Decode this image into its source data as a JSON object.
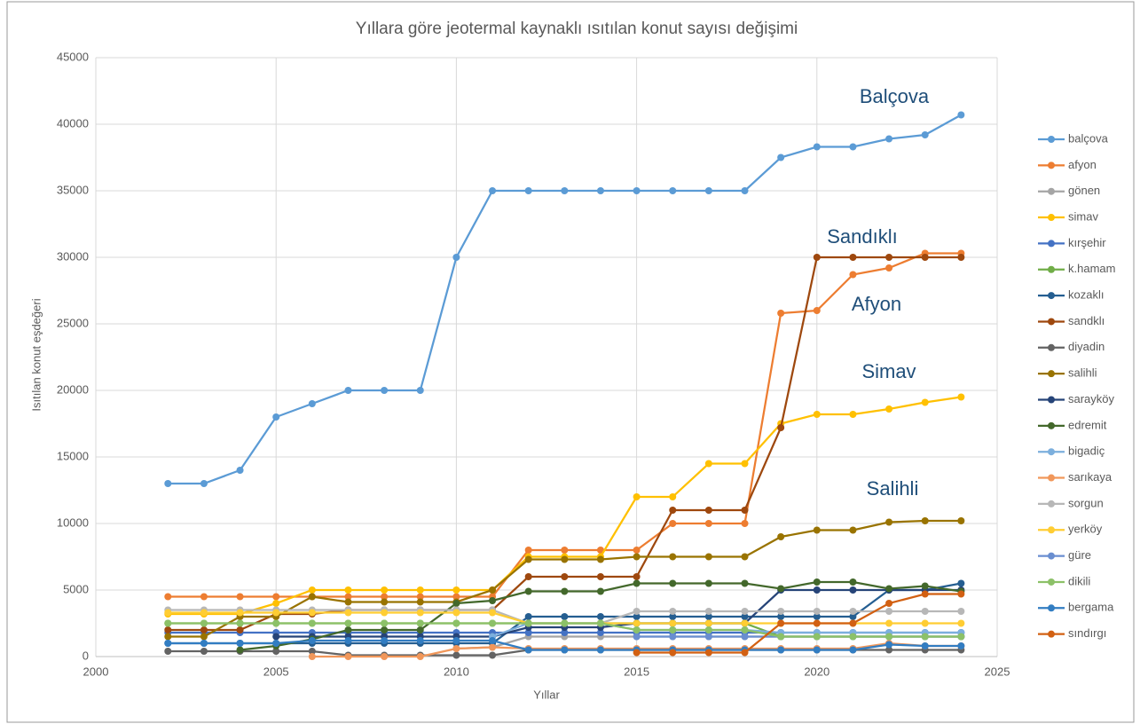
{
  "chart_data": {
    "type": "line",
    "title": "Yıllara göre jeotermal kaynaklı ısıtılan konut sayısı değişimi",
    "xlabel": "Yıllar",
    "ylabel": "Isıtılan konut eşdeğeri",
    "annotations": [
      "Balçova",
      "Sandıklı",
      "Afyon",
      "Simav",
      "Salihli"
    ],
    "x": [
      2002,
      2003,
      2004,
      2005,
      2006,
      2007,
      2008,
      2009,
      2010,
      2011,
      2012,
      2013,
      2014,
      2015,
      2016,
      2017,
      2018,
      2019,
      2020,
      2021,
      2022,
      2023,
      2024
    ],
    "xlim": [
      2000,
      2025
    ],
    "xticks": [
      2000,
      2005,
      2010,
      2015,
      2020,
      2025
    ],
    "ylim": [
      0,
      45000
    ],
    "yticks": [
      0,
      5000,
      10000,
      15000,
      20000,
      25000,
      30000,
      35000,
      40000,
      45000
    ],
    "grid": true,
    "legend": "right",
    "series": [
      {
        "name": "balçova",
        "color": "#5b9bd5",
        "values": [
          13000,
          13000,
          14000,
          18000,
          19000,
          20000,
          20000,
          20000,
          30000,
          35000,
          35000,
          35000,
          35000,
          35000,
          35000,
          35000,
          35000,
          37500,
          38300,
          38300,
          38900,
          39200,
          40700
        ]
      },
      {
        "name": "afyon",
        "color": "#ed7d31",
        "values": [
          4500,
          4500,
          4500,
          4500,
          4500,
          4500,
          4500,
          4500,
          4500,
          4500,
          8000,
          8000,
          8000,
          8000,
          10000,
          10000,
          10000,
          25800,
          26000,
          28700,
          29200,
          30300,
          30300
        ]
      },
      {
        "name": "gönen",
        "color": "#a5a5a5",
        "values": [
          null,
          null,
          null,
          null,
          null,
          null,
          null,
          null,
          600,
          700,
          1500,
          1500,
          1500,
          1500,
          1500,
          1500,
          1500,
          1500,
          1500,
          1500,
          1500,
          1500,
          1500
        ]
      },
      {
        "name": "simav",
        "color": "#ffc000",
        "values": [
          3200,
          3200,
          3200,
          4000,
          5000,
          5000,
          5000,
          5000,
          5000,
          5000,
          7500,
          7500,
          7500,
          12000,
          12000,
          14500,
          14500,
          17500,
          18200,
          18200,
          18600,
          19100,
          19500
        ]
      },
      {
        "name": "kırşehir",
        "color": "#4472c4",
        "values": [
          1800,
          1800,
          1800,
          1800,
          1800,
          1800,
          1800,
          1800,
          1800,
          1800,
          1800,
          1800,
          1800,
          1800,
          1800,
          1800,
          1800,
          1800,
          1800,
          1800,
          1800,
          1800,
          1800
        ]
      },
      {
        "name": "k.hamam",
        "color": "#70ad47",
        "values": [
          2500,
          2500,
          2500,
          2500,
          2500,
          2500,
          2500,
          2500,
          2500,
          2500,
          2500,
          2500,
          2500,
          2500,
          2500,
          2500,
          2500,
          1500,
          1500,
          1500,
          1500,
          1500,
          1500
        ]
      },
      {
        "name": "kozaklı",
        "color": "#255e91",
        "values": [
          1000,
          1000,
          1000,
          1000,
          1000,
          1000,
          1000,
          1000,
          1000,
          1000,
          3000,
          3000,
          3000,
          3000,
          3000,
          3000,
          3000,
          3000,
          3000,
          3000,
          5000,
          5000,
          5500
        ]
      },
      {
        "name": "sandklı",
        "color": "#9e480e",
        "values": [
          2000,
          2000,
          2000,
          3200,
          3200,
          3500,
          3500,
          3500,
          3500,
          3500,
          6000,
          6000,
          6000,
          6000,
          11000,
          11000,
          11000,
          17200,
          30000,
          30000,
          30000,
          30000,
          30000
        ]
      },
      {
        "name": "diyadin",
        "color": "#636363",
        "values": [
          400,
          400,
          400,
          400,
          400,
          100,
          100,
          100,
          100,
          100,
          500,
          500,
          500,
          500,
          500,
          500,
          500,
          500,
          500,
          500,
          500,
          500,
          500
        ]
      },
      {
        "name": "salihli",
        "color": "#997300",
        "values": [
          1500,
          1500,
          3000,
          3000,
          4500,
          4100,
          4100,
          4100,
          4100,
          5000,
          7300,
          7300,
          7300,
          7500,
          7500,
          7500,
          7500,
          9000,
          9500,
          9500,
          10100,
          10200,
          10200
        ]
      },
      {
        "name": "sarayköy",
        "color": "#264478",
        "values": [
          null,
          null,
          null,
          1500,
          1500,
          1500,
          1500,
          1500,
          1500,
          1500,
          2200,
          2200,
          2200,
          2500,
          2500,
          2500,
          2500,
          5000,
          5000,
          5000,
          5000,
          5000,
          5000
        ]
      },
      {
        "name": "edremit",
        "color": "#43682b",
        "values": [
          null,
          null,
          500,
          800,
          1300,
          2000,
          2000,
          2000,
          4000,
          4200,
          4900,
          4900,
          4900,
          5500,
          5500,
          5500,
          5500,
          5100,
          5600,
          5600,
          5100,
          5300,
          4900
        ]
      },
      {
        "name": "bigadiç",
        "color": "#7cafdd",
        "values": [
          null,
          null,
          null,
          null,
          null,
          null,
          null,
          null,
          null,
          1500,
          2500,
          2500,
          2500,
          2000,
          2000,
          2000,
          2000,
          1800,
          1800,
          1800,
          1800,
          1800,
          1800
        ]
      },
      {
        "name": "sarıkaya",
        "color": "#f1975a",
        "values": [
          null,
          null,
          null,
          null,
          0,
          0,
          0,
          0,
          600,
          700,
          600,
          600,
          600,
          600,
          600,
          600,
          600,
          600,
          600,
          600,
          1000,
          800,
          800
        ]
      },
      {
        "name": "sorgun",
        "color": "#b7b7b7",
        "values": [
          3500,
          3500,
          3500,
          3500,
          3500,
          3500,
          3500,
          3500,
          3500,
          3500,
          2500,
          2500,
          2500,
          3400,
          3400,
          3400,
          3400,
          3400,
          3400,
          3400,
          3400,
          3400,
          3400
        ]
      },
      {
        "name": "yerköy",
        "color": "#ffcd33",
        "values": [
          3300,
          3300,
          3300,
          3300,
          3300,
          3300,
          3300,
          3300,
          3300,
          3300,
          2500,
          2500,
          2500,
          2500,
          2500,
          2500,
          2500,
          2500,
          2500,
          2500,
          2500,
          2500,
          2500
        ]
      },
      {
        "name": "güre",
        "color": "#698ed0",
        "values": [
          null,
          null,
          null,
          null,
          null,
          null,
          null,
          null,
          null,
          null,
          null,
          null,
          null,
          1500,
          1500,
          1500,
          1500,
          1500,
          1500,
          1500,
          1500,
          1500,
          1500
        ]
      },
      {
        "name": "dikili",
        "color": "#8cc168",
        "values": [
          2500,
          2500,
          2500,
          2500,
          2500,
          2500,
          2500,
          2500,
          2500,
          2500,
          2500,
          2500,
          2500,
          2000,
          2000,
          2000,
          2000,
          1500,
          1500,
          1500,
          1500,
          1500,
          1500
        ]
      },
      {
        "name": "bergama",
        "color": "#327dc2",
        "values": [
          1000,
          1000,
          1000,
          1000,
          1200,
          1200,
          1200,
          1200,
          1200,
          1200,
          500,
          500,
          500,
          500,
          500,
          500,
          500,
          500,
          500,
          500,
          900,
          800,
          800
        ]
      },
      {
        "name": "sındırgı",
        "color": "#d26012",
        "values": [
          null,
          null,
          null,
          null,
          null,
          null,
          null,
          null,
          null,
          null,
          null,
          null,
          null,
          300,
          300,
          300,
          300,
          2500,
          2500,
          2500,
          4000,
          4700,
          4700
        ]
      }
    ]
  }
}
